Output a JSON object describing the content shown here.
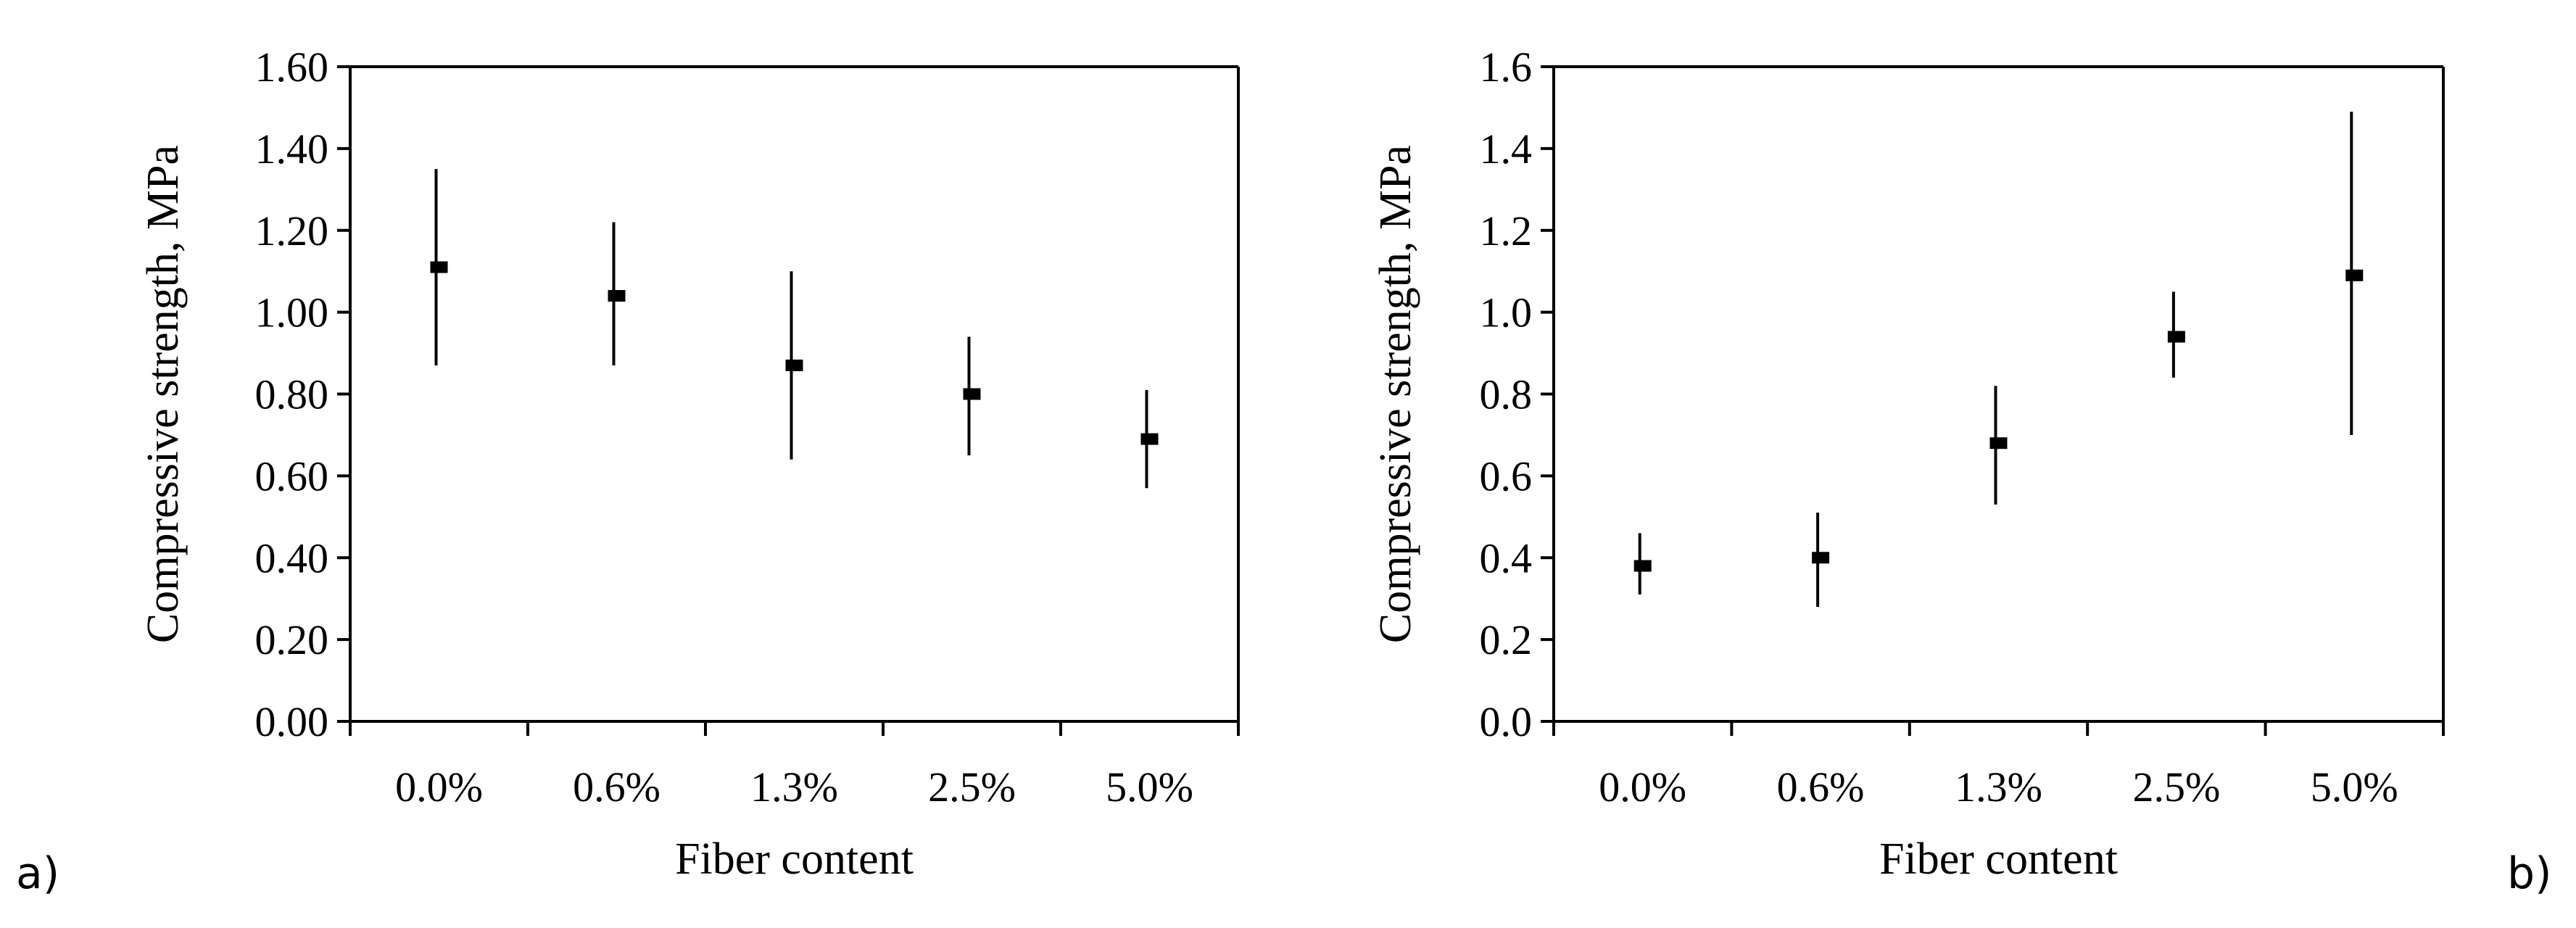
{
  "panels": [
    {
      "label": "a)"
    },
    {
      "label": "b)"
    }
  ],
  "chart_data": [
    {
      "type": "scatter",
      "panel": "a)",
      "xlabel": "Fiber content",
      "ylabel": "Compressive strength, MPa",
      "categories": [
        "0.0%",
        "0.6%",
        "1.3%",
        "2.5%",
        "5.0%"
      ],
      "values": [
        1.11,
        1.04,
        0.87,
        0.8,
        0.69
      ],
      "err_low": [
        0.87,
        0.87,
        0.64,
        0.65,
        0.57
      ],
      "err_high": [
        1.35,
        1.22,
        1.1,
        0.94,
        0.81
      ],
      "ylim": [
        0,
        1.6
      ],
      "yticks": [
        "0.00",
        "0.20",
        "0.40",
        "0.60",
        "0.80",
        "1.00",
        "1.20",
        "1.40",
        "1.60"
      ],
      "grid": false,
      "legend": "none"
    },
    {
      "type": "scatter",
      "panel": "b)",
      "xlabel": "Fiber content",
      "ylabel": "Compressive strength, MPa",
      "categories": [
        "0.0%",
        "0.6%",
        "1.3%",
        "2.5%",
        "5.0%"
      ],
      "values": [
        0.38,
        0.4,
        0.68,
        0.94,
        1.09
      ],
      "err_low": [
        0.31,
        0.28,
        0.53,
        0.84,
        0.7
      ],
      "err_high": [
        0.46,
        0.51,
        0.82,
        1.05,
        1.49
      ],
      "ylim": [
        0,
        1.6
      ],
      "yticks": [
        "0.0",
        "0.2",
        "0.4",
        "0.6",
        "0.8",
        "1.0",
        "1.2",
        "1.4",
        "1.6"
      ],
      "grid": false,
      "legend": "none"
    }
  ]
}
